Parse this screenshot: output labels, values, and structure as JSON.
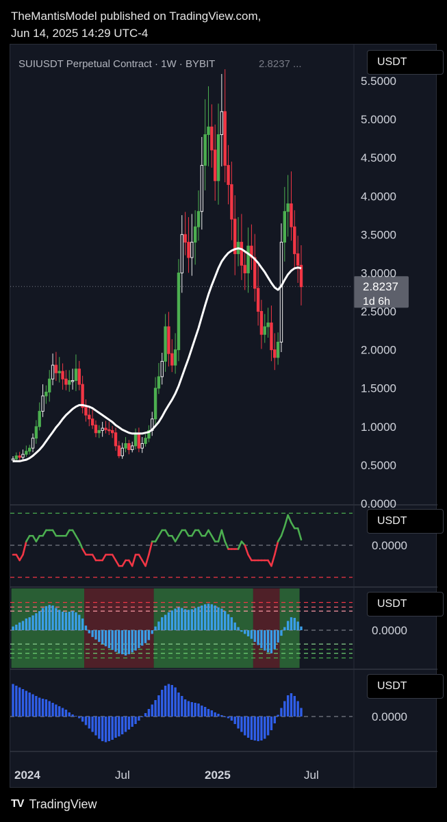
{
  "header": {
    "published_line": "TheMantisModel published on TradingView.com,",
    "date_line": "Jun 14, 2025 14:29 UTC-4"
  },
  "main_pane": {
    "legend": "SUIUSDT Perpetual Contract · 1W · BYBIT",
    "legend_value": "2.8237 ...",
    "unit": "USDT",
    "price_tag": "2.8237",
    "countdown_tag": "1d 6h"
  },
  "pane2": {
    "unit": "USDT",
    "zero_label": "0.0000"
  },
  "pane3": {
    "unit": "USDT",
    "zero_label": "0.0000"
  },
  "pane4": {
    "unit": "USDT",
    "zero_label": "0.0000"
  },
  "footer": {
    "brand": "TradingView",
    "logo_glyph": "TV"
  },
  "colors": {
    "bull": "#4caf50",
    "bear": "#f23645",
    "bull_hollow": "#f0f0f0",
    "ma": "#ffffff",
    "osc_up": "#4caf50",
    "osc_down": "#f23645",
    "hist_cyan": "#3a9ee8",
    "hist_blue": "#2f5ee8",
    "zone_green": "#2e6b37",
    "zone_red": "#5a2229"
  },
  "chart_data": [
    {
      "type": "candlestick",
      "title": "SUIUSDT Perpetual Contract · 1W · BYBIT",
      "last_price": 2.8237,
      "ylim": [
        0,
        5.5
      ],
      "y_ticks": [
        "5.5000",
        "5.0000",
        "4.5000",
        "4.0000",
        "3.5000",
        "3.0000",
        "2.5000",
        "2.0000",
        "1.5000",
        "1.0000",
        "0.5000",
        "0.0000"
      ],
      "x_ticks": [
        "2024",
        "Jul",
        "2025",
        "Jul"
      ],
      "closes": [
        0.58,
        0.62,
        0.6,
        0.64,
        0.68,
        0.72,
        0.85,
        1.0,
        1.2,
        1.4,
        1.45,
        1.62,
        1.8,
        1.7,
        1.72,
        1.62,
        1.55,
        1.6,
        1.6,
        1.75,
        1.55,
        1.25,
        1.15,
        1.1,
        1.02,
        0.92,
        0.95,
        0.98,
        0.96,
        0.95,
        0.92,
        0.75,
        0.62,
        0.72,
        0.78,
        0.7,
        0.75,
        0.9,
        0.72,
        0.78,
        0.85,
        0.95,
        1.1,
        1.5,
        1.65,
        1.85,
        2.3,
        1.95,
        1.8,
        2.0,
        3.0,
        3.5,
        3.4,
        3.2,
        3.4,
        3.6,
        3.8,
        4.4,
        4.8,
        4.9,
        4.6,
        4.2,
        4.8,
        5.1,
        4.4,
        4.15,
        3.7,
        3.25,
        3.4,
        3.1,
        3.0,
        3.35,
        3.2,
        2.8,
        2.5,
        2.2,
        2.3,
        2.35,
        2.0,
        1.9,
        2.1,
        3.4,
        3.8,
        3.9,
        3.6,
        3.25,
        3.1,
        2.82
      ],
      "ma": [
        0.55,
        0.55,
        0.55,
        0.56,
        0.57,
        0.59,
        0.62,
        0.66,
        0.7,
        0.75,
        0.81,
        0.87,
        0.93,
        0.99,
        1.04,
        1.1,
        1.15,
        1.19,
        1.23,
        1.26,
        1.28,
        1.28,
        1.27,
        1.26,
        1.24,
        1.21,
        1.18,
        1.15,
        1.12,
        1.09,
        1.06,
        1.02,
        0.99,
        0.96,
        0.94,
        0.92,
        0.91,
        0.91,
        0.91,
        0.91,
        0.92,
        0.93,
        0.96,
        1.01,
        1.06,
        1.13,
        1.21,
        1.28,
        1.35,
        1.43,
        1.53,
        1.65,
        1.77,
        1.89,
        2.02,
        2.15,
        2.28,
        2.43,
        2.58,
        2.72,
        2.84,
        2.95,
        3.06,
        3.15,
        3.21,
        3.26,
        3.29,
        3.31,
        3.32,
        3.31,
        3.28,
        3.25,
        3.22,
        3.18,
        3.13,
        3.07,
        3.01,
        2.94,
        2.87,
        2.81,
        2.78,
        2.83,
        2.91,
        2.98,
        3.03,
        3.06,
        3.07,
        3.06
      ]
    },
    {
      "type": "line",
      "name_visible": false,
      "zero_label": "0.0000",
      "values": [
        -0.5,
        -0.5,
        -0.8,
        -0.5,
        0.2,
        0.5,
        0.5,
        0.2,
        0.5,
        0.5,
        0.8,
        0.8,
        0.8,
        0.5,
        0.5,
        0.5,
        0.5,
        0.8,
        0.8,
        0.5,
        0.2,
        -0.2,
        -0.5,
        -0.5,
        -0.5,
        -0.8,
        -0.8,
        -0.8,
        -0.5,
        -0.5,
        -0.5,
        -0.8,
        -1.1,
        -1.1,
        -0.8,
        -0.8,
        -1.1,
        -0.5,
        -0.5,
        -0.8,
        -1.1,
        -0.5,
        0.2,
        0.2,
        0.5,
        0.8,
        0.8,
        0.5,
        0.5,
        0.2,
        0.5,
        0.8,
        0.8,
        0.5,
        0.5,
        0.8,
        0.8,
        0.5,
        0.5,
        0.8,
        0.5,
        0.2,
        0.2,
        0.8,
        0.2,
        -0.2,
        -0.2,
        -0.2,
        -0.2,
        0.2,
        0.0,
        -0.5,
        -0.8,
        -0.8,
        -0.8,
        -0.8,
        -0.8,
        -0.8,
        -1.1,
        -0.5,
        0.2,
        0.5,
        1.0,
        1.6,
        1.2,
        0.9,
        0.9,
        0.3
      ],
      "upper_band": 1.7,
      "lower_band": -1.7,
      "mid_band": 0
    },
    {
      "type": "bar",
      "name_visible": false,
      "zero_label": "0.0000",
      "values": [
        0.12,
        0.18,
        0.25,
        0.3,
        0.38,
        0.42,
        0.48,
        0.55,
        0.62,
        0.72,
        0.78,
        0.82,
        0.8,
        0.72,
        0.66,
        0.6,
        0.58,
        0.6,
        0.62,
        0.58,
        0.5,
        0.38,
        0.15,
        -0.1,
        -0.22,
        -0.3,
        -0.38,
        -0.45,
        -0.52,
        -0.58,
        -0.64,
        -0.7,
        -0.75,
        -0.78,
        -0.82,
        -0.78,
        -0.72,
        -0.66,
        -0.58,
        -0.5,
        -0.42,
        -0.32,
        -0.12,
        0.12,
        0.28,
        0.42,
        0.5,
        0.58,
        0.64,
        0.7,
        0.74,
        0.72,
        0.68,
        0.66,
        0.68,
        0.72,
        0.76,
        0.8,
        0.84,
        0.86,
        0.84,
        0.8,
        0.74,
        0.7,
        0.62,
        0.52,
        0.42,
        0.25,
        0.1,
        -0.05,
        -0.12,
        -0.2,
        -0.28,
        -0.38,
        -0.48,
        -0.58,
        -0.66,
        -0.72,
        -0.75,
        -0.62,
        -0.4,
        -0.18,
        0.1,
        0.3,
        0.42,
        0.4,
        0.28,
        0.12
      ],
      "zones": [
        [
          "green",
          0,
          21
        ],
        [
          "red",
          22,
          42
        ],
        [
          "green",
          43,
          72
        ],
        [
          "red",
          73,
          80
        ],
        [
          "green",
          81,
          86
        ]
      ],
      "bands": [
        0.9,
        0.75,
        0.62,
        -0.45,
        -0.62,
        -0.75,
        -0.9
      ]
    },
    {
      "type": "bar",
      "name_visible": false,
      "zero_label": "0.0000",
      "values": [
        0.95,
        0.9,
        0.85,
        0.8,
        0.75,
        0.7,
        0.65,
        0.6,
        0.55,
        0.52,
        0.5,
        0.45,
        0.4,
        0.35,
        0.3,
        0.25,
        0.2,
        0.12,
        0.06,
        0.02,
        -0.05,
        -0.15,
        -0.25,
        -0.35,
        -0.45,
        -0.55,
        -0.65,
        -0.72,
        -0.75,
        -0.72,
        -0.68,
        -0.62,
        -0.58,
        -0.52,
        -0.45,
        -0.38,
        -0.3,
        -0.22,
        -0.12,
        -0.02,
        0.1,
        0.22,
        0.35,
        0.48,
        0.62,
        0.78,
        0.9,
        0.95,
        0.92,
        0.85,
        0.7,
        0.6,
        0.5,
        0.45,
        0.42,
        0.4,
        0.38,
        0.32,
        0.28,
        0.22,
        0.18,
        0.12,
        0.08,
        0.04,
        0.0,
        -0.05,
        -0.12,
        -0.22,
        -0.35,
        -0.45,
        -0.55,
        -0.62,
        -0.68,
        -0.7,
        -0.72,
        -0.7,
        -0.65,
        -0.55,
        -0.4,
        -0.2,
        0.05,
        0.25,
        0.45,
        0.62,
        0.68,
        0.6,
        0.45,
        0.25
      ]
    }
  ]
}
